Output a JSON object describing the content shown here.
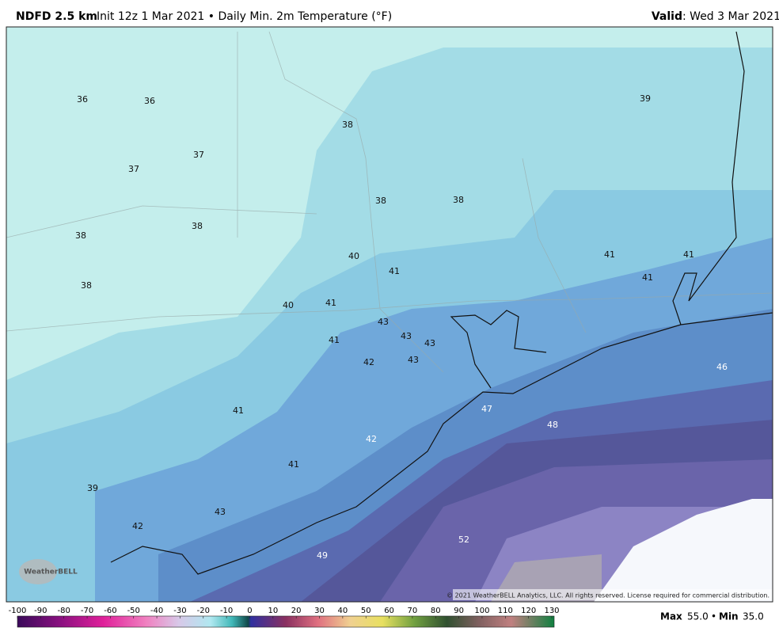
{
  "header": {
    "model": "NDFD 2.5 km",
    "description": "Init 12z 1 Mar 2021 • Daily Min. 2m Temperature (°F)",
    "valid_label": "Valid",
    "valid_date": ": Wed 3 Mar 2021"
  },
  "map_labels": [
    36,
    36,
    38,
    39,
    37,
    37,
    38,
    38,
    38,
    38,
    40,
    41,
    41,
    41,
    41,
    38,
    40,
    41,
    43,
    43,
    43,
    41,
    42,
    43,
    46,
    47,
    48,
    41,
    42,
    41,
    39,
    43,
    42,
    52,
    49
  ],
  "logo": "WeatherBELL",
  "copyright": "© 2021 WeatherBELL Analytics, LLC. All rights reserved. License required for commercial distribution.",
  "colorbar": {
    "ticks": [
      -100,
      -90,
      -80,
      -70,
      -60,
      -50,
      -40,
      -30,
      -20,
      -10,
      0,
      10,
      20,
      30,
      40,
      50,
      60,
      70,
      80,
      90,
      100,
      110,
      120,
      130
    ]
  },
  "stats": {
    "max_label": "Max",
    "max": "55.0",
    "min_label": "Min",
    "min": "35.0"
  }
}
